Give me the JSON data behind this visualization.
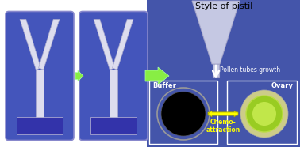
{
  "title": "Style of pistil",
  "title_color": "black",
  "title_fontsize": 8,
  "left_bg": "white",
  "panel_bg": "#4455bb",
  "panel_border": "#8888cc",
  "right_bg": "#4455aa",
  "pistil_color": "#ddddee",
  "pistil_edge": "#aaaacc",
  "arrow_small_color": "#88ee44",
  "arrow_big_color": "#88ee44",
  "pollen_arrow_color": "white",
  "pollen_text": "Pollen tubes growth",
  "pollen_text_color": "white",
  "buffer_text": "Buffer",
  "ovary_text": "Ovary",
  "chemo_text": "Chemo-\nattraction",
  "chemo_color": "yellow",
  "box_edge_color": "white",
  "buf_circle_fc": "black",
  "buf_ring_color": "#aaaaaa",
  "ovary_outer_color": "#cccc88",
  "ovary_inner_color": "#99cc22",
  "ovary_bright_color": "#ccee55"
}
